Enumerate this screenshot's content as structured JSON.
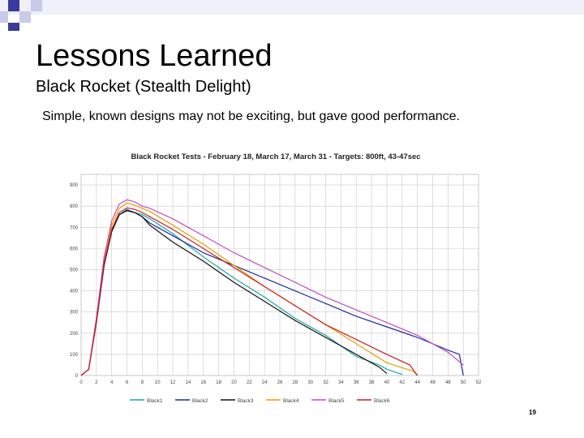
{
  "slide": {
    "title": "Lessons Learned",
    "subtitle": "Black Rocket (Stealth Delight)",
    "bullet": "Simple, known designs may not be exciting, but gave good performance.",
    "page_number": "19"
  },
  "colors": {
    "grid": "#c8c8c8",
    "deco_blue": "#3a3a9c",
    "deco_light": "#c9c9e8"
  },
  "chart_data": {
    "type": "line",
    "title": "Black Rocket Tests - February 18, March 17, March 31 - Targets: 800ft, 43-47sec",
    "xlabel": "",
    "ylabel": "",
    "x_ticks": [
      0,
      2,
      4,
      6,
      8,
      10,
      12,
      14,
      16,
      18,
      20,
      22,
      24,
      26,
      28,
      30,
      32,
      34,
      36,
      38,
      40,
      42,
      44,
      46,
      48,
      50,
      52
    ],
    "y_ticks": [
      0,
      100,
      200,
      300,
      400,
      500,
      600,
      700,
      800,
      900
    ],
    "xlim": [
      0,
      52
    ],
    "ylim": [
      0,
      950
    ],
    "grid": true,
    "legend_position": "bottom",
    "series": [
      {
        "name": "Black1",
        "color": "#1aa6a6",
        "points": [
          [
            0,
            0
          ],
          [
            1,
            30
          ],
          [
            2,
            250
          ],
          [
            3,
            520
          ],
          [
            4,
            680
          ],
          [
            5,
            760
          ],
          [
            6,
            785
          ],
          [
            7,
            770
          ],
          [
            8,
            760
          ],
          [
            9,
            740
          ],
          [
            12,
            670
          ],
          [
            16,
            560
          ],
          [
            20,
            460
          ],
          [
            24,
            370
          ],
          [
            28,
            270
          ],
          [
            32,
            190
          ],
          [
            36,
            90
          ],
          [
            39,
            50
          ],
          [
            40,
            30
          ],
          [
            42,
            5
          ]
        ]
      },
      {
        "name": "Black2",
        "color": "#1f2e9c",
        "points": [
          [
            0,
            0
          ],
          [
            1,
            30
          ],
          [
            2,
            250
          ],
          [
            3,
            520
          ],
          [
            4,
            680
          ],
          [
            5,
            760
          ],
          [
            6,
            778
          ],
          [
            7,
            770
          ],
          [
            8,
            750
          ],
          [
            9,
            720
          ],
          [
            12,
            660
          ],
          [
            16,
            580
          ],
          [
            20,
            520
          ],
          [
            24,
            460
          ],
          [
            28,
            400
          ],
          [
            32,
            340
          ],
          [
            36,
            280
          ],
          [
            40,
            230
          ],
          [
            44,
            180
          ],
          [
            48,
            120
          ],
          [
            49.5,
            100
          ],
          [
            50,
            0
          ]
        ]
      },
      {
        "name": "Black3",
        "color": "#111111",
        "points": [
          [
            0,
            0
          ],
          [
            1,
            30
          ],
          [
            2,
            250
          ],
          [
            3,
            520
          ],
          [
            4,
            680
          ],
          [
            5,
            760
          ],
          [
            6,
            780
          ],
          [
            7,
            770
          ],
          [
            8,
            750
          ],
          [
            9,
            710
          ],
          [
            12,
            630
          ],
          [
            16,
            540
          ],
          [
            20,
            440
          ],
          [
            24,
            350
          ],
          [
            28,
            260
          ],
          [
            32,
            180
          ],
          [
            36,
            100
          ],
          [
            39,
            40
          ],
          [
            40,
            10
          ]
        ]
      },
      {
        "name": "Black4",
        "color": "#e6a000",
        "points": [
          [
            0,
            0
          ],
          [
            1,
            30
          ],
          [
            2,
            260
          ],
          [
            3,
            540
          ],
          [
            4,
            710
          ],
          [
            5,
            790
          ],
          [
            6,
            815
          ],
          [
            7,
            805
          ],
          [
            8,
            790
          ],
          [
            9,
            775
          ],
          [
            12,
            710
          ],
          [
            16,
            620
          ],
          [
            20,
            520
          ],
          [
            24,
            420
          ],
          [
            28,
            330
          ],
          [
            32,
            240
          ],
          [
            36,
            150
          ],
          [
            40,
            60
          ],
          [
            43.5,
            20
          ],
          [
            44,
            0
          ]
        ]
      },
      {
        "name": "Black5",
        "color": "#c050c0",
        "points": [
          [
            0,
            0
          ],
          [
            1,
            30
          ],
          [
            2,
            270
          ],
          [
            3,
            560
          ],
          [
            4,
            730
          ],
          [
            5,
            810
          ],
          [
            6,
            830
          ],
          [
            7,
            820
          ],
          [
            8,
            800
          ],
          [
            9,
            790
          ],
          [
            12,
            740
          ],
          [
            16,
            660
          ],
          [
            20,
            580
          ],
          [
            24,
            510
          ],
          [
            28,
            440
          ],
          [
            32,
            370
          ],
          [
            36,
            310
          ],
          [
            40,
            250
          ],
          [
            44,
            190
          ],
          [
            48,
            110
          ],
          [
            50,
            50
          ]
        ]
      },
      {
        "name": "Black6",
        "color": "#cc2020",
        "points": [
          [
            0,
            0
          ],
          [
            1,
            30
          ],
          [
            2,
            255
          ],
          [
            3,
            530
          ],
          [
            4,
            690
          ],
          [
            5,
            770
          ],
          [
            6,
            792
          ],
          [
            7,
            785
          ],
          [
            8,
            770
          ],
          [
            9,
            750
          ],
          [
            12,
            690
          ],
          [
            16,
            600
          ],
          [
            20,
            510
          ],
          [
            24,
            420
          ],
          [
            28,
            330
          ],
          [
            32,
            240
          ],
          [
            36,
            170
          ],
          [
            40,
            100
          ],
          [
            43,
            50
          ],
          [
            44,
            0
          ]
        ]
      }
    ]
  }
}
